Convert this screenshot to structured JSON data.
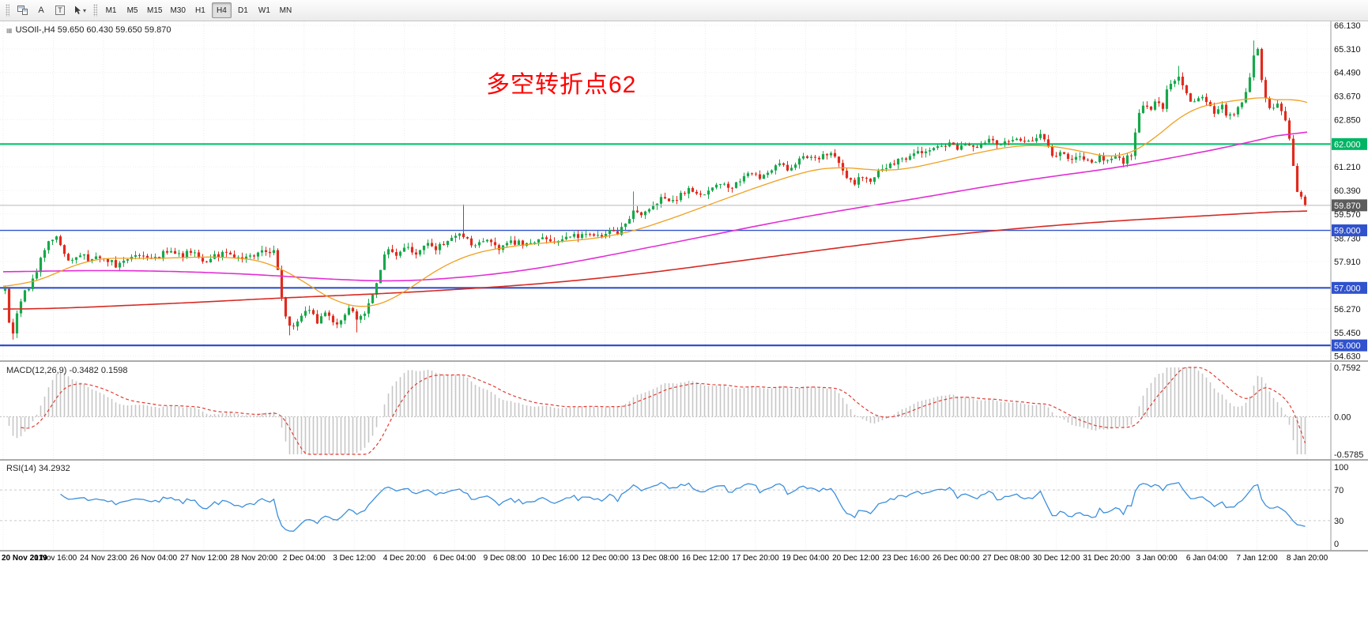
{
  "toolbar": {
    "buttons": {
      "a_label": "A",
      "t_label": "T"
    },
    "timeframes": [
      "M1",
      "M5",
      "M15",
      "M30",
      "H1",
      "H4",
      "D1",
      "W1",
      "MN"
    ],
    "active_timeframe": "H4"
  },
  "chart": {
    "symbol_info": "USOIl-,H4 59.650 60.430 59.650 59.870",
    "annotation": {
      "text": "多空转折点62",
      "color": "#ff0000"
    },
    "price_axis_labels": [
      "66.130",
      "65.310",
      "64.490",
      "63.670",
      "62.850",
      "61.210",
      "60.390",
      "59.570",
      "58.730",
      "57.910",
      "56.270",
      "55.450",
      "54.630"
    ],
    "hlines": [
      {
        "label": "62.000",
        "value": 62.0,
        "color": "#00c66d",
        "width": 2.2,
        "badge_bg": "#00b565"
      },
      {
        "label": "59.000",
        "value": 59.0,
        "color": "#3052cc",
        "width": 1.4,
        "badge_bg": "#3052cc"
      },
      {
        "label": "57.000",
        "value": 57.0,
        "color": "#3052cc",
        "width": 2.2,
        "badge_bg": "#3052cc"
      },
      {
        "label": "55.000",
        "value": 55.0,
        "color": "#3052cc",
        "width": 2.2,
        "badge_bg": "#3052cc"
      }
    ],
    "bid_line": {
      "label": "59.870",
      "value": 59.87,
      "color": "#b8b8b8",
      "badge_bg": "#5c5c5c"
    }
  },
  "macd": {
    "label": "MACD(12,26,9) -0.3482 0.1598",
    "scale": {
      "max_label": "0.7592",
      "zero_label": "0.00",
      "min_label": "-0.5785",
      "max": 0.7592,
      "min": -0.5785
    },
    "colors": {
      "histogram": "#c6c6c6",
      "signal": "#e23c34"
    }
  },
  "rsi": {
    "label": "RSI(14) 34.2932",
    "scale_labels": [
      "100",
      "70",
      "30",
      "0"
    ],
    "levels": [
      70,
      30
    ],
    "color": "#3c8fdc",
    "level_color": "#c9c9c9"
  },
  "time_axis": {
    "labels": [
      "20 Nov 2019",
      "21 Nov 16:00",
      "24 Nov 23:00",
      "26 Nov 04:00",
      "27 Nov 12:00",
      "28 Nov 20:00",
      "2 Dec 04:00",
      "3 Dec 12:00",
      "4 Dec 20:00",
      "6 Dec 04:00",
      "9 Dec 08:00",
      "10 Dec 16:00",
      "12 Dec 00:00",
      "13 Dec 08:00",
      "16 Dec 12:00",
      "17 Dec 20:00",
      "19 Dec 04:00",
      "20 Dec 12:00",
      "23 Dec 16:00",
      "26 Dec 00:00",
      "27 Dec 08:00",
      "30 Dec 12:00",
      "31 Dec 20:00",
      "3 Jan 00:00",
      "6 Jan 04:00",
      "7 Jan 12:00",
      "8 Jan 20:00"
    ]
  },
  "chart_data": {
    "type": "candlestick",
    "symbol": "USOIl-",
    "timeframe": "H4",
    "ohlc_display": {
      "open": "59.650",
      "high": "60.430",
      "low": "59.650",
      "close": "59.870"
    },
    "last_close": 59.87,
    "candle_count": 330,
    "price_range": {
      "max": 66.13,
      "min": 54.63
    },
    "colors": {
      "up": "#17a84b",
      "down": "#e02a1e",
      "ma_fast": "#efa020",
      "ma_mid": "#e22fd4",
      "ma_slow": "#d62a24"
    },
    "price_path": [
      [
        0.0,
        56.9
      ],
      [
        0.003,
        55.9
      ],
      [
        0.006,
        55.3
      ],
      [
        0.01,
        56.3
      ],
      [
        0.016,
        56.9
      ],
      [
        0.022,
        57.3
      ],
      [
        0.03,
        58.3
      ],
      [
        0.038,
        58.85
      ],
      [
        0.044,
        58.4
      ],
      [
        0.05,
        57.9
      ],
      [
        0.058,
        58.2
      ],
      [
        0.065,
        57.9
      ],
      [
        0.075,
        58.1
      ],
      [
        0.085,
        57.8
      ],
      [
        0.095,
        58.0
      ],
      [
        0.105,
        58.2
      ],
      [
        0.115,
        58.0
      ],
      [
        0.125,
        58.3
      ],
      [
        0.135,
        58.1
      ],
      [
        0.145,
        58.3
      ],
      [
        0.152,
        57.9
      ],
      [
        0.16,
        58.1
      ],
      [
        0.17,
        58.2
      ],
      [
        0.18,
        57.95
      ],
      [
        0.19,
        58.1
      ],
      [
        0.2,
        58.3
      ],
      [
        0.208,
        58.2
      ],
      [
        0.213,
        56.6
      ],
      [
        0.218,
        55.6
      ],
      [
        0.226,
        55.9
      ],
      [
        0.233,
        56.3
      ],
      [
        0.24,
        55.8
      ],
      [
        0.247,
        56.2
      ],
      [
        0.253,
        55.7
      ],
      [
        0.26,
        56.0
      ],
      [
        0.266,
        56.3
      ],
      [
        0.271,
        55.9
      ],
      [
        0.276,
        56.1
      ],
      [
        0.282,
        56.7
      ],
      [
        0.288,
        57.6
      ],
      [
        0.293,
        58.4
      ],
      [
        0.3,
        58.1
      ],
      [
        0.308,
        58.5
      ],
      [
        0.316,
        58.2
      ],
      [
        0.323,
        58.6
      ],
      [
        0.33,
        58.3
      ],
      [
        0.34,
        58.6
      ],
      [
        0.35,
        58.9
      ],
      [
        0.36,
        58.5
      ],
      [
        0.37,
        58.7
      ],
      [
        0.38,
        58.4
      ],
      [
        0.39,
        58.6
      ],
      [
        0.4,
        58.5
      ],
      [
        0.412,
        58.7
      ],
      [
        0.424,
        58.6
      ],
      [
        0.436,
        58.8
      ],
      [
        0.448,
        58.9
      ],
      [
        0.458,
        58.7
      ],
      [
        0.466,
        59.0
      ],
      [
        0.472,
        58.9
      ],
      [
        0.478,
        59.3
      ],
      [
        0.484,
        59.8
      ],
      [
        0.49,
        59.6
      ],
      [
        0.498,
        59.9
      ],
      [
        0.506,
        60.1
      ],
      [
        0.512,
        59.9
      ],
      [
        0.52,
        60.3
      ],
      [
        0.528,
        60.4
      ],
      [
        0.535,
        60.2
      ],
      [
        0.542,
        60.5
      ],
      [
        0.55,
        60.7
      ],
      [
        0.558,
        60.5
      ],
      [
        0.566,
        60.8
      ],
      [
        0.574,
        61.0
      ],
      [
        0.58,
        60.8
      ],
      [
        0.588,
        61.1
      ],
      [
        0.596,
        61.3
      ],
      [
        0.602,
        61.1
      ],
      [
        0.61,
        61.4
      ],
      [
        0.618,
        61.6
      ],
      [
        0.626,
        61.5
      ],
      [
        0.634,
        61.7
      ],
      [
        0.64,
        61.4
      ],
      [
        0.646,
        60.9
      ],
      [
        0.652,
        60.6
      ],
      [
        0.658,
        60.9
      ],
      [
        0.664,
        60.7
      ],
      [
        0.67,
        61.0
      ],
      [
        0.678,
        61.2
      ],
      [
        0.686,
        61.4
      ],
      [
        0.694,
        61.5
      ],
      [
        0.702,
        61.7
      ],
      [
        0.71,
        61.8
      ],
      [
        0.718,
        61.9
      ],
      [
        0.726,
        62.0
      ],
      [
        0.733,
        61.8
      ],
      [
        0.74,
        62.0
      ],
      [
        0.748,
        61.9
      ],
      [
        0.756,
        62.1
      ],
      [
        0.764,
        62.0
      ],
      [
        0.772,
        62.1
      ],
      [
        0.78,
        62.2
      ],
      [
        0.788,
        62.1
      ],
      [
        0.796,
        62.3
      ],
      [
        0.801,
        62.0
      ],
      [
        0.806,
        61.6
      ],
      [
        0.812,
        61.7
      ],
      [
        0.818,
        61.4
      ],
      [
        0.824,
        61.6
      ],
      [
        0.83,
        61.5
      ],
      [
        0.836,
        61.3
      ],
      [
        0.842,
        61.6
      ],
      [
        0.848,
        61.4
      ],
      [
        0.854,
        61.5
      ],
      [
        0.86,
        61.4
      ],
      [
        0.866,
        61.6
      ],
      [
        0.871,
        62.9
      ],
      [
        0.876,
        63.4
      ],
      [
        0.881,
        63.1
      ],
      [
        0.886,
        63.6
      ],
      [
        0.89,
        63.2
      ],
      [
        0.894,
        63.9
      ],
      [
        0.898,
        64.1
      ],
      [
        0.903,
        64.4
      ],
      [
        0.907,
        63.9
      ],
      [
        0.911,
        63.6
      ],
      [
        0.916,
        63.4
      ],
      [
        0.921,
        63.7
      ],
      [
        0.926,
        63.3
      ],
      [
        0.931,
        63.0
      ],
      [
        0.936,
        63.3
      ],
      [
        0.941,
        62.9
      ],
      [
        0.946,
        63.1
      ],
      [
        0.951,
        63.3
      ],
      [
        0.956,
        64.0
      ],
      [
        0.96,
        65.1
      ],
      [
        0.963,
        65.4
      ],
      [
        0.966,
        64.4
      ],
      [
        0.97,
        63.5
      ],
      [
        0.974,
        63.2
      ],
      [
        0.978,
        63.5
      ],
      [
        0.982,
        63.1
      ],
      [
        0.986,
        62.8
      ],
      [
        0.99,
        61.6
      ],
      [
        0.994,
        60.4
      ],
      [
        1.0,
        59.87
      ]
    ],
    "wick_highs": [
      [
        0.352,
        59.9
      ],
      [
        0.484,
        60.35
      ],
      [
        0.903,
        64.72
      ],
      [
        0.961,
        65.6
      ]
    ],
    "wick_lows": [
      [
        0.006,
        55.2
      ],
      [
        0.218,
        55.35
      ],
      [
        0.271,
        55.45
      ]
    ],
    "ma_slow_path": [
      [
        0,
        56.25
      ],
      [
        0.05,
        56.3
      ],
      [
        0.1,
        56.4
      ],
      [
        0.15,
        56.5
      ],
      [
        0.2,
        56.62
      ],
      [
        0.25,
        56.72
      ],
      [
        0.3,
        56.82
      ],
      [
        0.35,
        56.95
      ],
      [
        0.4,
        57.1
      ],
      [
        0.45,
        57.3
      ],
      [
        0.5,
        57.55
      ],
      [
        0.55,
        57.85
      ],
      [
        0.6,
        58.15
      ],
      [
        0.65,
        58.45
      ],
      [
        0.7,
        58.72
      ],
      [
        0.75,
        58.95
      ],
      [
        0.8,
        59.15
      ],
      [
        0.85,
        59.32
      ],
      [
        0.9,
        59.45
      ],
      [
        0.95,
        59.58
      ],
      [
        1,
        59.7
      ]
    ],
    "ma_mid_path": [
      [
        0,
        57.55
      ],
      [
        0.05,
        57.6
      ],
      [
        0.1,
        57.6
      ],
      [
        0.15,
        57.55
      ],
      [
        0.2,
        57.45
      ],
      [
        0.25,
        57.3
      ],
      [
        0.3,
        57.22
      ],
      [
        0.35,
        57.35
      ],
      [
        0.4,
        57.6
      ],
      [
        0.45,
        58.0
      ],
      [
        0.5,
        58.45
      ],
      [
        0.55,
        58.9
      ],
      [
        0.6,
        59.35
      ],
      [
        0.65,
        59.75
      ],
      [
        0.7,
        60.1
      ],
      [
        0.75,
        60.5
      ],
      [
        0.8,
        60.85
      ],
      [
        0.85,
        61.15
      ],
      [
        0.9,
        61.55
      ],
      [
        0.95,
        62.0
      ],
      [
        1,
        62.55
      ]
    ],
    "ma_fast_path": [
      [
        0,
        57.1
      ],
      [
        0.02,
        57.0
      ],
      [
        0.04,
        57.5
      ],
      [
        0.06,
        58.0
      ],
      [
        0.09,
        58.05
      ],
      [
        0.12,
        58.0
      ],
      [
        0.15,
        58.1
      ],
      [
        0.18,
        58.05
      ],
      [
        0.21,
        57.9
      ],
      [
        0.23,
        57.2
      ],
      [
        0.25,
        56.6
      ],
      [
        0.27,
        56.2
      ],
      [
        0.29,
        56.3
      ],
      [
        0.31,
        56.9
      ],
      [
        0.33,
        57.6
      ],
      [
        0.35,
        58.1
      ],
      [
        0.38,
        58.4
      ],
      [
        0.41,
        58.55
      ],
      [
        0.44,
        58.65
      ],
      [
        0.47,
        58.8
      ],
      [
        0.5,
        59.2
      ],
      [
        0.53,
        59.7
      ],
      [
        0.56,
        60.2
      ],
      [
        0.59,
        60.7
      ],
      [
        0.62,
        61.1
      ],
      [
        0.64,
        61.3
      ],
      [
        0.66,
        61.1
      ],
      [
        0.68,
        61.0
      ],
      [
        0.7,
        61.2
      ],
      [
        0.73,
        61.5
      ],
      [
        0.76,
        61.85
      ],
      [
        0.79,
        62.0
      ],
      [
        0.81,
        61.95
      ],
      [
        0.83,
        61.7
      ],
      [
        0.85,
        61.5
      ],
      [
        0.865,
        61.45
      ],
      [
        0.88,
        62.0
      ],
      [
        0.9,
        63.0
      ],
      [
        0.92,
        63.5
      ],
      [
        0.94,
        63.4
      ],
      [
        0.955,
        63.5
      ],
      [
        0.97,
        63.8
      ],
      [
        0.985,
        63.7
      ],
      [
        1,
        62.9
      ]
    ]
  }
}
